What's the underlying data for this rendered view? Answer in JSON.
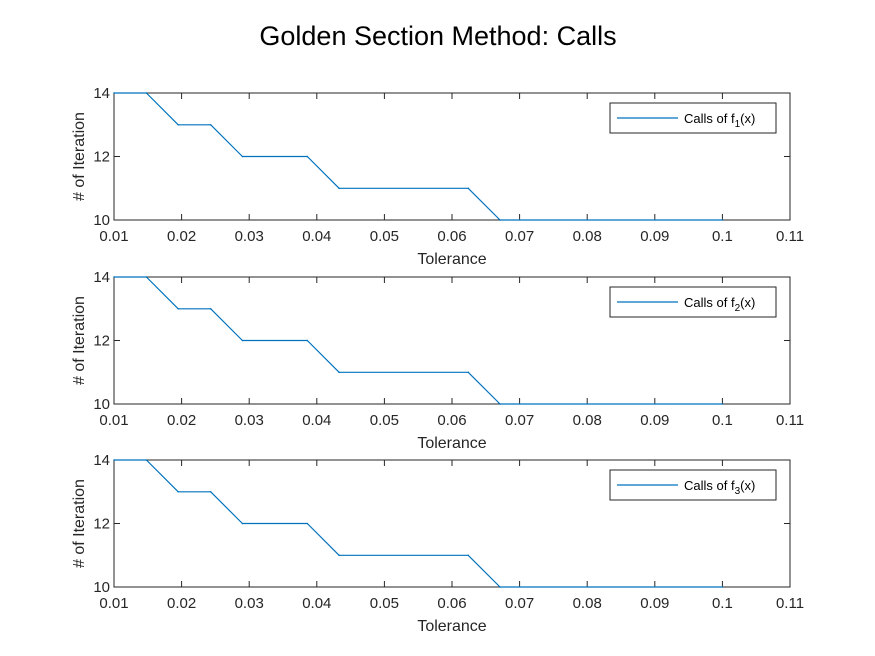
{
  "figure": {
    "title": "Golden Section Method: Calls"
  },
  "colors": {
    "series": "#0072bd",
    "axes": "#262626",
    "background": "#ffffff"
  },
  "chart_data": [
    {
      "type": "line",
      "xlabel": "Tolerance",
      "ylabel": "# of Iteration",
      "xlim": [
        0.01,
        0.11
      ],
      "ylim": [
        10,
        14
      ],
      "xticks": [
        "0.01",
        "0.02",
        "0.03",
        "0.04",
        "0.05",
        "0.06",
        "0.07",
        "0.08",
        "0.09",
        "0.1",
        "0.11"
      ],
      "yticks": [
        "10",
        "12",
        "14"
      ],
      "grid": false,
      "legend_position": "top-right",
      "series": [
        {
          "name": "Calls of f1(x)",
          "legend": {
            "prefix": "Calls of f",
            "sub": "1",
            "suffix": "(x)"
          },
          "x": [
            0.01,
            0.0148,
            0.0195,
            0.0243,
            0.029,
            0.0386,
            0.0433,
            0.0624,
            0.0671,
            0.1
          ],
          "y": [
            14,
            14,
            13,
            13,
            12,
            12,
            11,
            11,
            10,
            10
          ]
        }
      ]
    },
    {
      "type": "line",
      "xlabel": "Tolerance",
      "ylabel": "# of Iteration",
      "xlim": [
        0.01,
        0.11
      ],
      "ylim": [
        10,
        14
      ],
      "xticks": [
        "0.01",
        "0.02",
        "0.03",
        "0.04",
        "0.05",
        "0.06",
        "0.07",
        "0.08",
        "0.09",
        "0.1",
        "0.11"
      ],
      "yticks": [
        "10",
        "12",
        "14"
      ],
      "grid": false,
      "legend_position": "top-right",
      "series": [
        {
          "name": "Calls of f2(x)",
          "legend": {
            "prefix": "Calls of f",
            "sub": "2",
            "suffix": "(x)"
          },
          "x": [
            0.01,
            0.0148,
            0.0195,
            0.0243,
            0.029,
            0.0386,
            0.0433,
            0.0624,
            0.0671,
            0.1
          ],
          "y": [
            14,
            14,
            13,
            13,
            12,
            12,
            11,
            11,
            10,
            10
          ]
        }
      ]
    },
    {
      "type": "line",
      "xlabel": "Tolerance",
      "ylabel": "# of Iteration",
      "xlim": [
        0.01,
        0.11
      ],
      "ylim": [
        10,
        14
      ],
      "xticks": [
        "0.01",
        "0.02",
        "0.03",
        "0.04",
        "0.05",
        "0.06",
        "0.07",
        "0.08",
        "0.09",
        "0.1",
        "0.11"
      ],
      "yticks": [
        "10",
        "12",
        "14"
      ],
      "grid": false,
      "legend_position": "top-right",
      "series": [
        {
          "name": "Calls of f3(x)",
          "legend": {
            "prefix": "Calls of f",
            "sub": "3",
            "suffix": "(x)"
          },
          "x": [
            0.01,
            0.0148,
            0.0195,
            0.0243,
            0.029,
            0.0386,
            0.0433,
            0.0624,
            0.0671,
            0.1
          ],
          "y": [
            14,
            14,
            13,
            13,
            12,
            12,
            11,
            11,
            10,
            10
          ]
        }
      ]
    }
  ]
}
